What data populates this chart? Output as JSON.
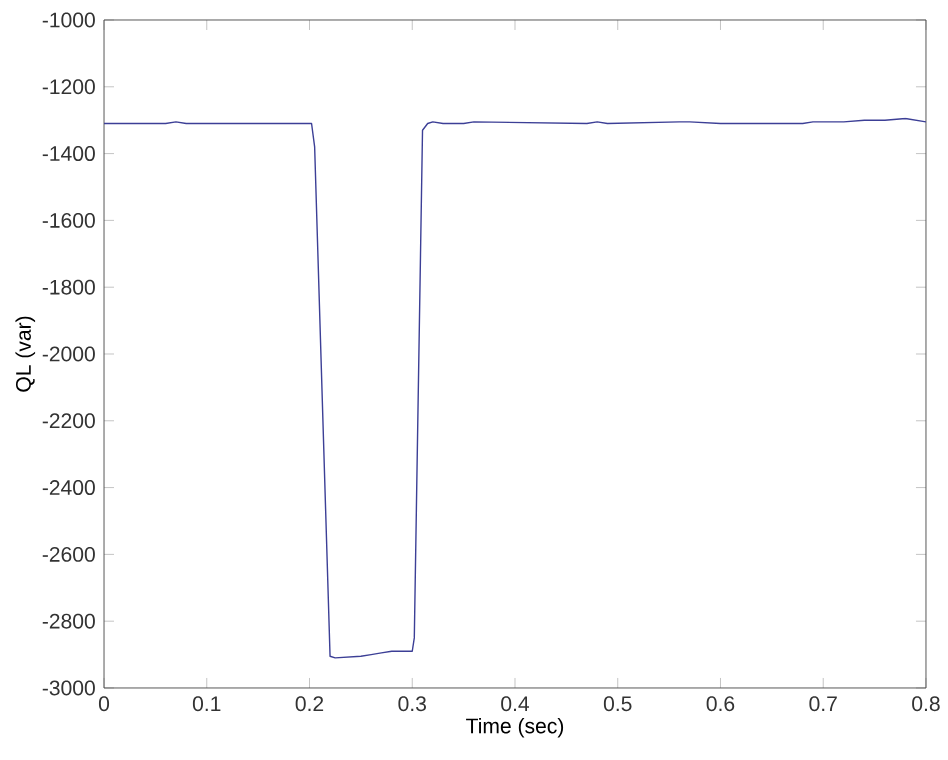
{
  "chart_data": {
    "type": "line",
    "xlabel": "Time (sec)",
    "ylabel": "QL (var)",
    "x": [
      0,
      0.06,
      0.07,
      0.08,
      0.2,
      0.202,
      0.205,
      0.22,
      0.225,
      0.25,
      0.26,
      0.27,
      0.28,
      0.3,
      0.302,
      0.31,
      0.315,
      0.32,
      0.33,
      0.35,
      0.36,
      0.47,
      0.48,
      0.49,
      0.56,
      0.57,
      0.6,
      0.68,
      0.69,
      0.72,
      0.74,
      0.76,
      0.78,
      0.8
    ],
    "series": [
      {
        "color": "#3c3f96",
        "values": [
          -1310,
          -1310,
          -1305,
          -1310,
          -1310,
          -1310,
          -1380,
          -2905,
          -2910,
          -2905,
          -2900,
          -2895,
          -2890,
          -2890,
          -2850,
          -1330,
          -1310,
          -1305,
          -1310,
          -1310,
          -1305,
          -1310,
          -1305,
          -1310,
          -1305,
          -1305,
          -1310,
          -1310,
          -1305,
          -1305,
          -1300,
          -1300,
          -1295,
          -1305
        ]
      }
    ],
    "xlim": [
      0,
      0.8
    ],
    "ylim": [
      -3000,
      -1000
    ],
    "xticks": [
      0,
      0.1,
      0.2,
      0.3,
      0.4,
      0.5,
      0.6,
      0.7,
      0.8
    ],
    "yticks": [
      -3000,
      -2800,
      -2600,
      -2400,
      -2200,
      -2000,
      -1800,
      -1600,
      -1400,
      -1200,
      -1000
    ],
    "grid": false,
    "line_style": "solid",
    "marker": "none"
  }
}
